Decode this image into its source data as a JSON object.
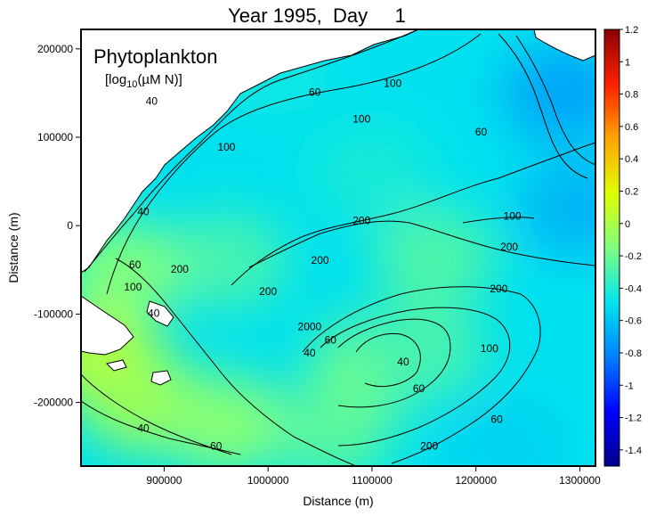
{
  "chart_data": {
    "type": "heatmap",
    "title": "Year 1995,  Day     1",
    "variable": "Phytoplankton",
    "units": "[log10(µM N)]",
    "units_parts": {
      "pre": "[log",
      "sub": "10",
      "post": "(µM N)]"
    },
    "xlabel": "Distance (m)",
    "ylabel": "Distance (m)",
    "xlim": [
      820000,
      1315000
    ],
    "ylim": [
      -272000,
      222000
    ],
    "xticks": [
      {
        "value": 900000,
        "label": "900000"
      },
      {
        "value": 1000000,
        "label": "1000000"
      },
      {
        "value": 1100000,
        "label": "1100000"
      },
      {
        "value": 1200000,
        "label": "1200000"
      },
      {
        "value": 1300000,
        "label": "1300000"
      }
    ],
    "yticks": [
      {
        "value": 200000,
        "label": "200000"
      },
      {
        "value": 100000,
        "label": "100000"
      },
      {
        "value": 0,
        "label": "0"
      },
      {
        "value": -100000,
        "label": "-100000"
      },
      {
        "value": -200000,
        "label": "-200000"
      }
    ],
    "colorbar": {
      "range": [
        -1.5,
        1.2
      ],
      "colormap": [
        "#00008b",
        "#0000ff",
        "#0080ff",
        "#00e5ee",
        "#7fff7f",
        "#e0ff00",
        "#ffa500",
        "#ff2000",
        "#8b0000"
      ],
      "ticks": [
        {
          "value": 1.2,
          "label": "1.2"
        },
        {
          "value": 1.0,
          "label": "1"
        },
        {
          "value": 0.8,
          "label": "0.8"
        },
        {
          "value": 0.6,
          "label": "0.6"
        },
        {
          "value": 0.4,
          "label": "0.4"
        },
        {
          "value": 0.2,
          "label": "0.2"
        },
        {
          "value": 0.0,
          "label": "0"
        },
        {
          "value": -0.2,
          "label": "-0.2"
        },
        {
          "value": -0.4,
          "label": "-0.4"
        },
        {
          "value": -0.6,
          "label": "-0.6"
        },
        {
          "value": -0.8,
          "label": "-0.8"
        },
        {
          "value": -1.0,
          "label": "-1"
        },
        {
          "value": -1.2,
          "label": "-1.2"
        },
        {
          "value": -1.4,
          "label": "-1.4"
        }
      ]
    },
    "land_color": "#ffffff",
    "background_value": -0.5,
    "field_patches": [
      {
        "x": 840000,
        "y": -150000,
        "value": 0.05
      },
      {
        "x": 880000,
        "y": -200000,
        "value": -0.05
      },
      {
        "x": 960000,
        "y": -225000,
        "value": -0.12
      },
      {
        "x": 1060000,
        "y": -235000,
        "value": -0.25
      },
      {
        "x": 1100000,
        "y": -160000,
        "value": -0.2
      },
      {
        "x": 1150000,
        "y": -140000,
        "value": -0.3
      },
      {
        "x": 1160000,
        "y": -35000,
        "value": -0.28
      },
      {
        "x": 960000,
        "y": -40000,
        "value": -0.3
      },
      {
        "x": 860000,
        "y": -50000,
        "value": -0.15
      },
      {
        "x": 1100000,
        "y": 60000,
        "value": -0.42
      },
      {
        "x": 1000000,
        "y": 180000,
        "value": -0.45
      },
      {
        "x": 1285000,
        "y": 150000,
        "value": -0.7
      },
      {
        "x": 1300000,
        "y": 20000,
        "value": -0.65
      },
      {
        "x": 1230000,
        "y": -250000,
        "value": -0.55
      }
    ],
    "contour_labels": [
      {
        "x": 888000,
        "y": 140000,
        "label": "40"
      },
      {
        "x": 880000,
        "y": 15000,
        "label": "40"
      },
      {
        "x": 872000,
        "y": -45000,
        "label": "60"
      },
      {
        "x": 915000,
        "y": -50000,
        "label": "200"
      },
      {
        "x": 870000,
        "y": -70000,
        "label": "100"
      },
      {
        "x": 890000,
        "y": -100000,
        "label": "40"
      },
      {
        "x": 880000,
        "y": -230000,
        "label": "40"
      },
      {
        "x": 950000,
        "y": -250000,
        "label": "60"
      },
      {
        "x": 960000,
        "y": 88000,
        "label": "100"
      },
      {
        "x": 1000000,
        "y": -75000,
        "label": "200"
      },
      {
        "x": 1090000,
        "y": 5000,
        "label": "200"
      },
      {
        "x": 1050000,
        "y": -40000,
        "label": "200"
      },
      {
        "x": 1040000,
        "y": -115000,
        "label": "2000"
      },
      {
        "x": 1060000,
        "y": -130000,
        "label": "60"
      },
      {
        "x": 1040000,
        "y": -145000,
        "label": "40"
      },
      {
        "x": 1090000,
        "y": 120000,
        "label": "100"
      },
      {
        "x": 1120000,
        "y": 160000,
        "label": "100"
      },
      {
        "x": 1045000,
        "y": 150000,
        "label": "60"
      },
      {
        "x": 1205000,
        "y": 105000,
        "label": "60"
      },
      {
        "x": 1235000,
        "y": 10000,
        "label": "100"
      },
      {
        "x": 1232000,
        "y": -25000,
        "label": "200"
      },
      {
        "x": 1222000,
        "y": -72000,
        "label": "200"
      },
      {
        "x": 1213000,
        "y": -140000,
        "label": "100"
      },
      {
        "x": 1220000,
        "y": -220000,
        "label": "60"
      },
      {
        "x": 1155000,
        "y": -250000,
        "label": "200"
      },
      {
        "x": 1130000,
        "y": -155000,
        "label": "40"
      },
      {
        "x": 1145000,
        "y": -185000,
        "label": "60"
      }
    ]
  }
}
